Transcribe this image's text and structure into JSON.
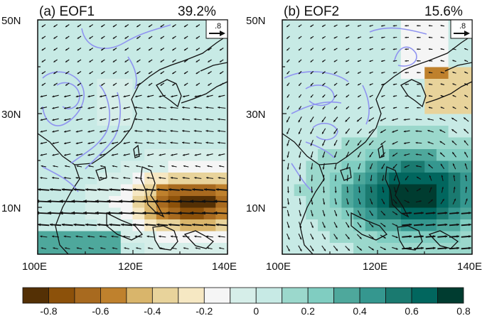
{
  "chart_data": [
    {
      "type": "heatmap",
      "panel": "(a)",
      "title": "(a) EOF1",
      "variance": "39.2%",
      "x_ticks": [
        "100E",
        "120E",
        "140E"
      ],
      "y_ticks": [
        "50N",
        "30N",
        "10N"
      ],
      "x_range_deg": [
        100,
        140
      ],
      "y_range_deg": [
        0,
        50
      ],
      "ref_vector": ".8",
      "field_description": "negative (brown) anomaly over western Pacific 5N-20N, 115E-140E; westerly vectors in tropics"
    },
    {
      "type": "heatmap",
      "panel": "(b)",
      "title": "(b) EOF2",
      "variance": "15.6%",
      "x_ticks": [
        "100E",
        "120E",
        "140E"
      ],
      "y_ticks": [
        "50N",
        "30N",
        "10N"
      ],
      "x_range_deg": [
        100,
        140
      ],
      "y_range_deg": [
        0,
        50
      ],
      "ref_vector": ".8",
      "field_description": "positive (teal) anomaly over South China Sea / Philippine Sea; cyclonic vectors"
    }
  ],
  "colorbar": {
    "labels": [
      "-0.8",
      "-0.6",
      "-0.4",
      "-0.2",
      "0",
      "0.2",
      "0.4",
      "0.6",
      "0.8"
    ],
    "colors": [
      "#543005",
      "#8c510a",
      "#a86a1f",
      "#bf812d",
      "#d9b56b",
      "#e8d39b",
      "#f6e8c3",
      "#f5f5f5",
      "#d6eee9",
      "#c7eae5",
      "#9bd8cc",
      "#80cdc1",
      "#4ea89c",
      "#35978f",
      "#1a7a70",
      "#01665e",
      "#003c30"
    ]
  }
}
